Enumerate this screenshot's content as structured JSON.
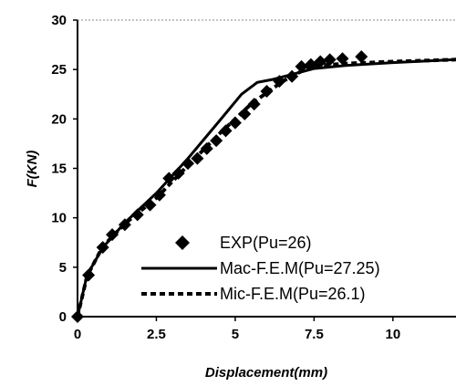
{
  "chart_data": {
    "type": "line",
    "xlabel": "Displacement(mm)",
    "ylabel": "F(KN)",
    "xlim": [
      0,
      12
    ],
    "ylim": [
      0,
      30
    ],
    "x_ticks": [
      "0",
      "2.5",
      "5",
      "7.5",
      "10"
    ],
    "y_ticks": [
      "0",
      "5",
      "10",
      "15",
      "20",
      "25",
      "30"
    ],
    "grid": false,
    "legend_position": "bottom-right",
    "series": [
      {
        "name": "EXP(Pu=26)",
        "style": "markers",
        "marker": "diamond",
        "color": "#000000",
        "x": [
          0.0,
          0.35,
          0.8,
          1.1,
          1.5,
          1.9,
          2.3,
          2.6,
          2.9,
          3.2,
          3.5,
          3.8,
          4.1,
          4.4,
          4.7,
          5.0,
          5.3,
          5.6,
          6.0,
          6.4,
          6.8,
          7.1,
          7.4,
          7.7,
          8.0,
          8.4,
          9.0
        ],
        "y": [
          0.0,
          4.2,
          7.0,
          8.3,
          9.3,
          10.3,
          11.3,
          12.3,
          14.0,
          14.5,
          15.5,
          16.0,
          17.0,
          17.8,
          18.8,
          19.6,
          20.5,
          21.5,
          22.8,
          23.8,
          24.3,
          25.3,
          25.5,
          25.8,
          26.0,
          26.1,
          26.3
        ]
      },
      {
        "name": "Mac-F.E.M(Pu=27.25)",
        "style": "solid",
        "color": "#000000",
        "x": [
          0.0,
          0.3,
          0.8,
          1.5,
          2.5,
          3.5,
          4.5,
          5.2,
          5.7,
          6.2,
          6.8,
          7.5,
          8.5,
          10.0,
          12.0
        ],
        "y": [
          0.0,
          4.2,
          7.0,
          9.5,
          12.5,
          16.0,
          19.8,
          22.5,
          23.7,
          24.0,
          24.5,
          25.1,
          25.4,
          25.7,
          26.0
        ]
      },
      {
        "name": "Mic-F.E.M(Pu=26.1)",
        "style": "dashed",
        "color": "#000000",
        "x": [
          0.0,
          0.3,
          0.8,
          1.5,
          2.5,
          3.5,
          4.5,
          5.5,
          6.5,
          7.2,
          7.6,
          8.5,
          10.0,
          12.0
        ],
        "y": [
          0.0,
          4.1,
          7.1,
          9.4,
          12.0,
          15.3,
          18.5,
          21.5,
          23.8,
          25.0,
          25.4,
          25.6,
          25.8,
          26.0
        ]
      }
    ]
  }
}
